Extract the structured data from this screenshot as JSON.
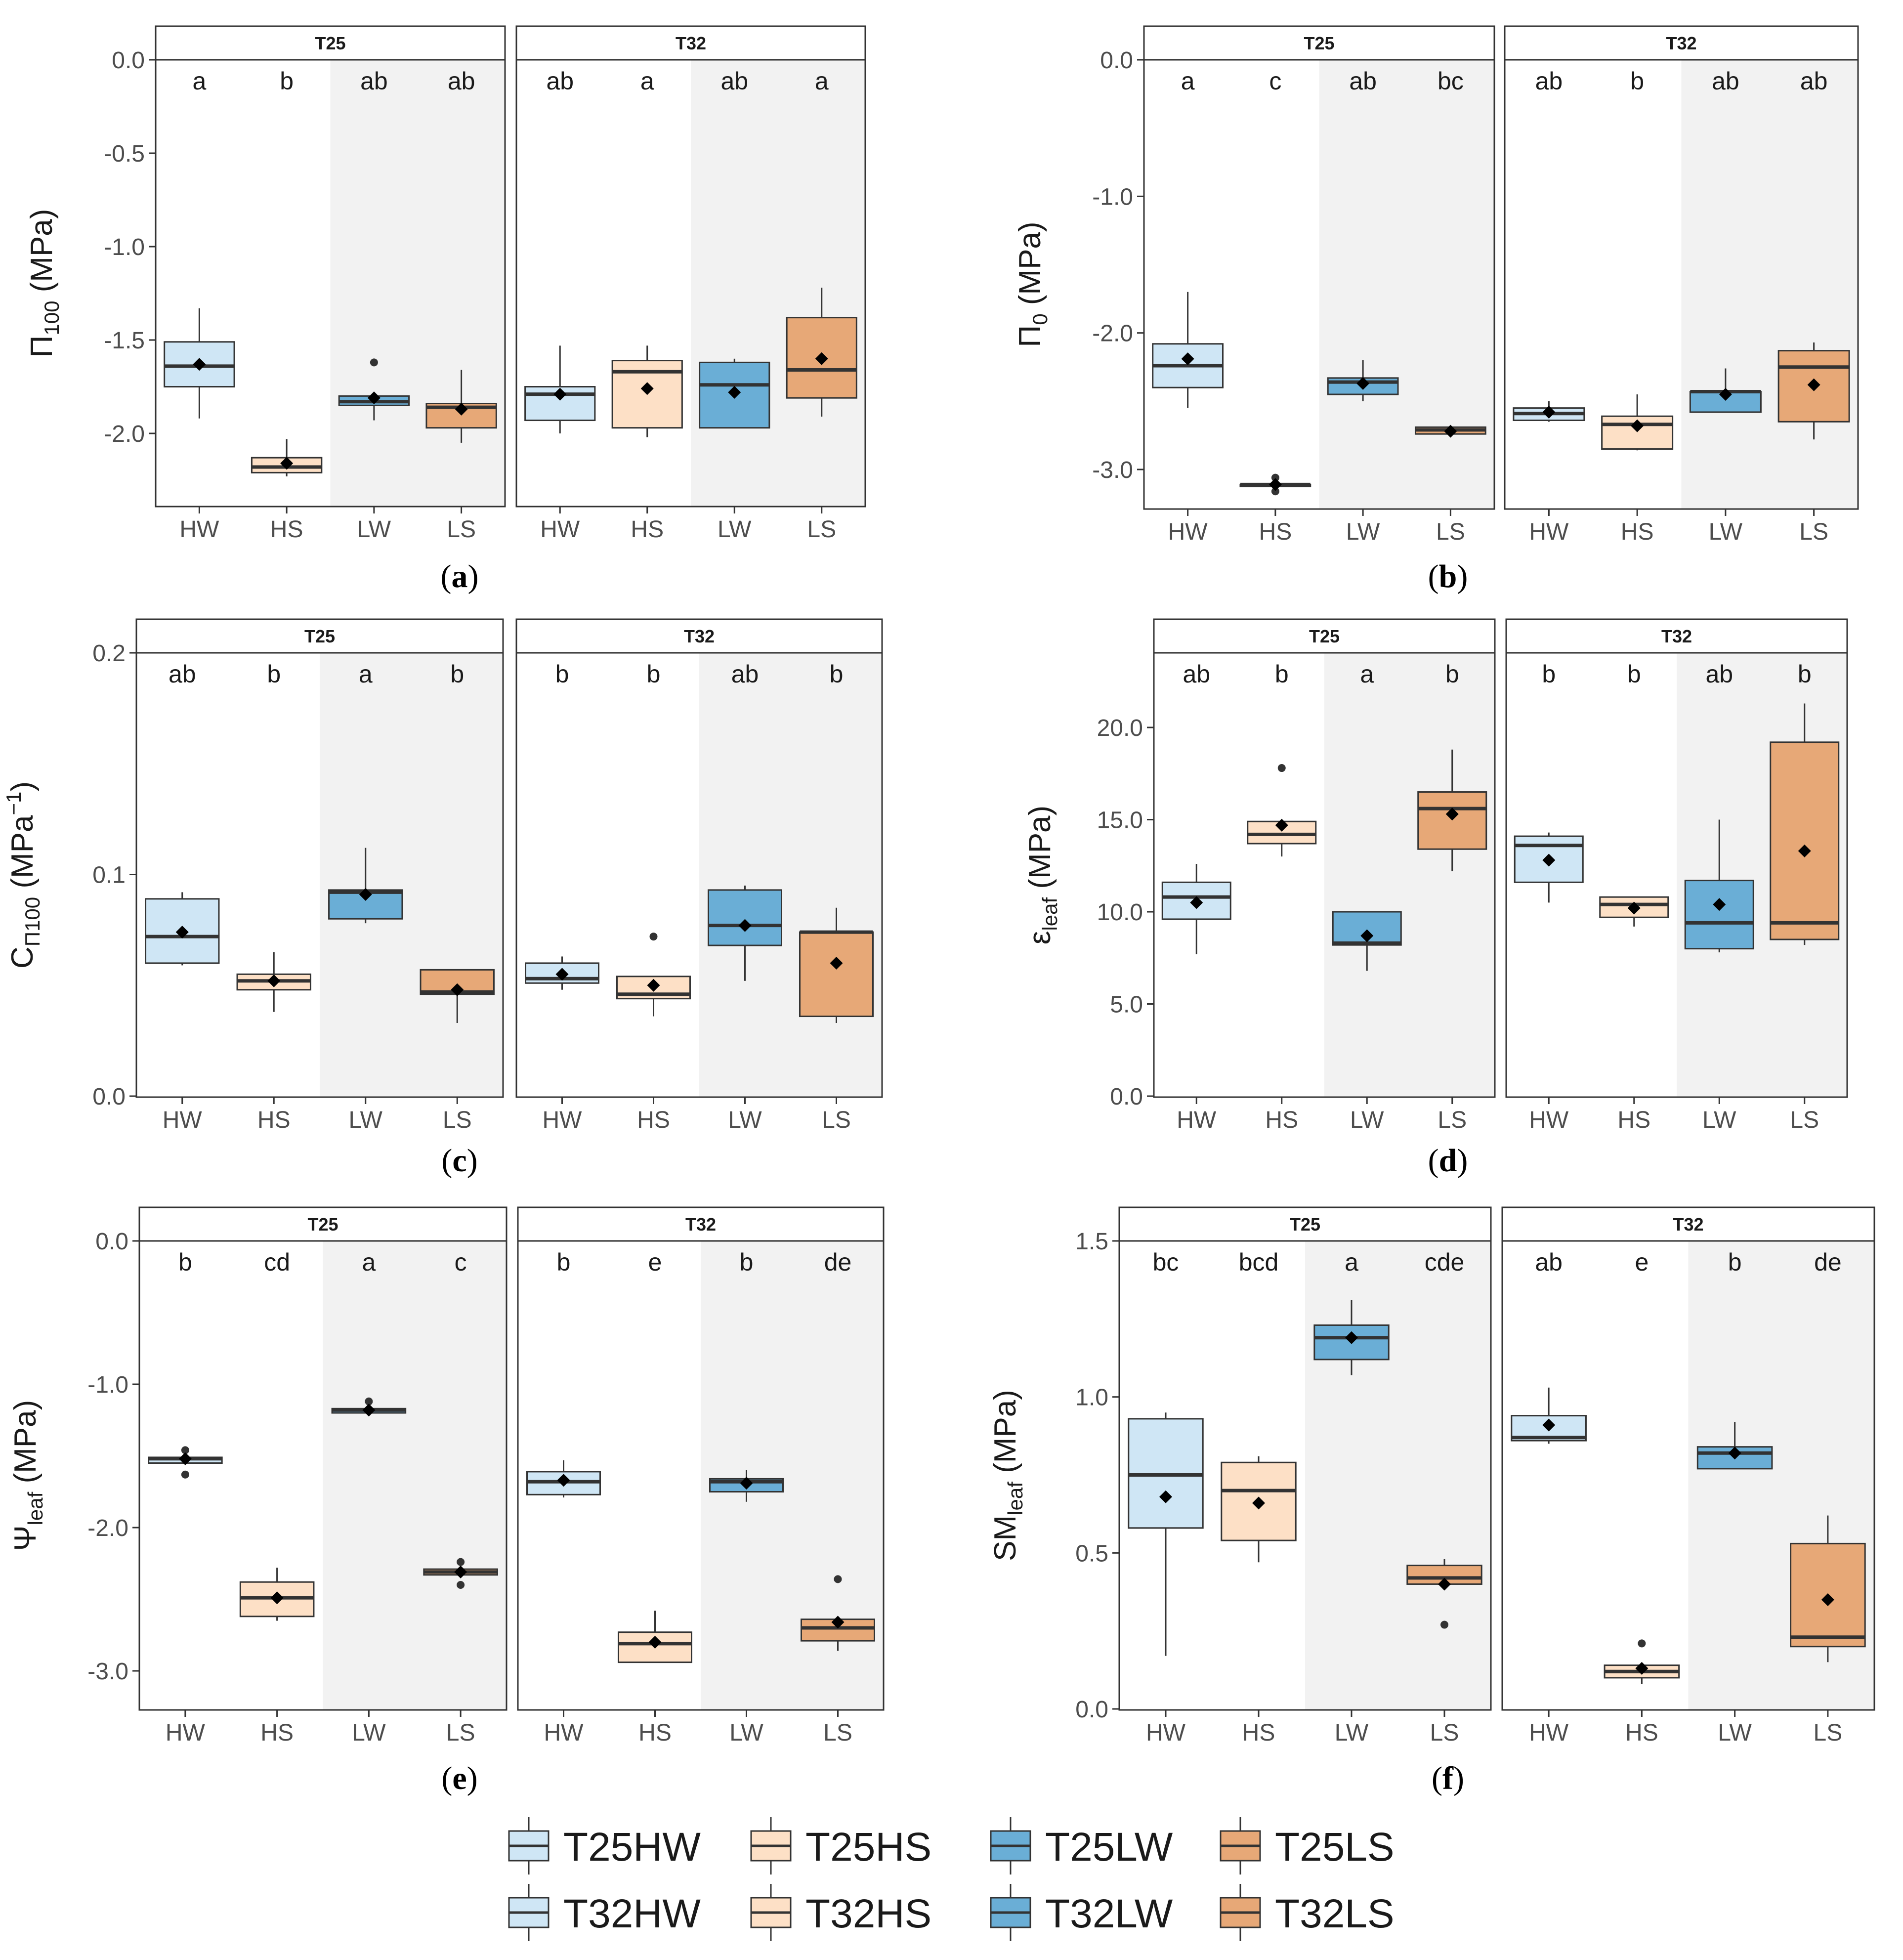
{
  "colors": {
    "HW": "#cfe6f5",
    "HS": "#fde0c6",
    "LW": "#6aaed6",
    "LS": "#e7a877",
    "shade": "#f2f2f2",
    "box_line": "#333333",
    "whisker": "#333333",
    "frame": "#333333"
  },
  "chart_data": [
    {
      "type": "box",
      "panel": "a",
      "caption": "(a)",
      "ylabel": {
        "main": "Π",
        "sub": "100",
        "tail": " (MPa)"
      },
      "ylim": [
        -2.4,
        0.0
      ],
      "yticks": [
        0.0,
        -0.5,
        -1.0,
        -1.5,
        -2.0
      ],
      "yticklabels": [
        "0.0",
        "-0.5",
        "-1.0",
        "-1.5",
        "-2.0"
      ],
      "facets": [
        {
          "strip": "T25",
          "categories": [
            "HW",
            "HS",
            "LW",
            "LS"
          ],
          "letters": [
            "a",
            "b",
            "ab",
            "ab"
          ],
          "boxes": [
            {
              "cat": "HW",
              "q1": -1.75,
              "median": -1.64,
              "q3": -1.51,
              "lo": -1.92,
              "hi": -1.33,
              "mean": -1.63,
              "outliers": []
            },
            {
              "cat": "HS",
              "q1": -2.21,
              "median": -2.18,
              "q3": -2.13,
              "lo": -2.23,
              "hi": -2.03,
              "mean": -2.16,
              "outliers": []
            },
            {
              "cat": "LW",
              "q1": -1.85,
              "median": -1.83,
              "q3": -1.8,
              "lo": -1.93,
              "hi": -1.8,
              "mean": -1.81,
              "outliers": [
                -1.62
              ]
            },
            {
              "cat": "LS",
              "q1": -1.97,
              "median": -1.86,
              "q3": -1.84,
              "lo": -2.05,
              "hi": -1.66,
              "mean": -1.87,
              "outliers": []
            }
          ]
        },
        {
          "strip": "T32",
          "categories": [
            "HW",
            "HS",
            "LW",
            "LS"
          ],
          "letters": [
            "ab",
            "a",
            "ab",
            "a"
          ],
          "boxes": [
            {
              "cat": "HW",
              "q1": -1.93,
              "median": -1.79,
              "q3": -1.75,
              "lo": -2.0,
              "hi": -1.53,
              "mean": -1.79,
              "outliers": []
            },
            {
              "cat": "HS",
              "q1": -1.97,
              "median": -1.67,
              "q3": -1.61,
              "lo": -2.02,
              "hi": -1.53,
              "mean": -1.76,
              "outliers": []
            },
            {
              "cat": "LW",
              "q1": -1.97,
              "median": -1.74,
              "q3": -1.62,
              "lo": -1.97,
              "hi": -1.6,
              "mean": -1.78,
              "outliers": []
            },
            {
              "cat": "LS",
              "q1": -1.81,
              "median": -1.66,
              "q3": -1.38,
              "lo": -1.91,
              "hi": -1.22,
              "mean": -1.6,
              "outliers": []
            }
          ]
        }
      ]
    },
    {
      "type": "box",
      "panel": "b",
      "caption": "(b)",
      "ylabel": {
        "main": "Π",
        "sub": "0",
        "tail": " (MPa)"
      },
      "ylim": [
        -3.3,
        0.0
      ],
      "yticks": [
        0.0,
        -1.0,
        -2.0,
        -3.0
      ],
      "yticklabels": [
        "0.0",
        "-1.0",
        "-2.0",
        "-3.0"
      ],
      "facets": [
        {
          "strip": "T25",
          "categories": [
            "HW",
            "HS",
            "LW",
            "LS"
          ],
          "letters": [
            "a",
            "c",
            "ab",
            "bc"
          ],
          "boxes": [
            {
              "cat": "HW",
              "q1": -2.4,
              "median": -2.24,
              "q3": -2.08,
              "lo": -2.55,
              "hi": -1.7,
              "mean": -2.19,
              "outliers": []
            },
            {
              "cat": "HS",
              "q1": -3.12,
              "median": -3.11,
              "q3": -3.11,
              "lo": -3.12,
              "hi": -3.11,
              "mean": -3.11,
              "outliers": [
                -3.06,
                -3.16
              ]
            },
            {
              "cat": "LW",
              "q1": -2.45,
              "median": -2.36,
              "q3": -2.33,
              "lo": -2.5,
              "hi": -2.2,
              "mean": -2.37,
              "outliers": []
            },
            {
              "cat": "LS",
              "q1": -2.74,
              "median": -2.71,
              "q3": -2.69,
              "lo": -2.76,
              "hi": -2.69,
              "mean": -2.72,
              "outliers": []
            }
          ]
        },
        {
          "strip": "T32",
          "categories": [
            "HW",
            "HS",
            "LW",
            "LS"
          ],
          "letters": [
            "ab",
            "b",
            "ab",
            "ab"
          ],
          "boxes": [
            {
              "cat": "HW",
              "q1": -2.64,
              "median": -2.59,
              "q3": -2.55,
              "lo": -2.65,
              "hi": -2.5,
              "mean": -2.58,
              "outliers": []
            },
            {
              "cat": "HS",
              "q1": -2.85,
              "median": -2.67,
              "q3": -2.61,
              "lo": -2.86,
              "hi": -2.45,
              "mean": -2.68,
              "outliers": []
            },
            {
              "cat": "LW",
              "q1": -2.58,
              "median": -2.43,
              "q3": -2.43,
              "lo": -2.58,
              "hi": -2.26,
              "mean": -2.45,
              "outliers": []
            },
            {
              "cat": "LS",
              "q1": -2.65,
              "median": -2.25,
              "q3": -2.13,
              "lo": -2.78,
              "hi": -2.07,
              "mean": -2.38,
              "outliers": []
            }
          ]
        }
      ]
    },
    {
      "type": "box",
      "panel": "c",
      "caption": "(c)",
      "ylabel": {
        "main": "C",
        "sub": "Π100",
        "tail": " (MPa",
        "sup": "−1",
        "tail2": ")"
      },
      "ylim": [
        0.0,
        0.2
      ],
      "yticks": [
        0.0,
        0.1,
        0.2
      ],
      "yticklabels": [
        "0.0",
        "0.1",
        "0.2"
      ],
      "facets": [
        {
          "strip": "T25",
          "categories": [
            "HW",
            "HS",
            "LW",
            "LS"
          ],
          "letters": [
            "ab",
            "b",
            "a",
            "b"
          ],
          "boxes": [
            {
              "cat": "HW",
              "q1": 0.06,
              "median": 0.072,
              "q3": 0.089,
              "lo": 0.059,
              "hi": 0.092,
              "mean": 0.074,
              "outliers": []
            },
            {
              "cat": "HS",
              "q1": 0.048,
              "median": 0.052,
              "q3": 0.055,
              "lo": 0.038,
              "hi": 0.065,
              "mean": 0.052,
              "outliers": []
            },
            {
              "cat": "LW",
              "q1": 0.08,
              "median": 0.092,
              "q3": 0.093,
              "lo": 0.078,
              "hi": 0.112,
              "mean": 0.091,
              "outliers": []
            },
            {
              "cat": "LS",
              "q1": 0.046,
              "median": 0.047,
              "q3": 0.057,
              "lo": 0.033,
              "hi": 0.057,
              "mean": 0.048,
              "outliers": []
            }
          ]
        },
        {
          "strip": "T32",
          "categories": [
            "HW",
            "HS",
            "LW",
            "LS"
          ],
          "letters": [
            "b",
            "b",
            "ab",
            "b"
          ],
          "boxes": [
            {
              "cat": "HW",
              "q1": 0.051,
              "median": 0.053,
              "q3": 0.06,
              "lo": 0.048,
              "hi": 0.063,
              "mean": 0.055,
              "outliers": []
            },
            {
              "cat": "HS",
              "q1": 0.044,
              "median": 0.046,
              "q3": 0.054,
              "lo": 0.036,
              "hi": 0.054,
              "mean": 0.05,
              "outliers": [
                0.072
              ]
            },
            {
              "cat": "LW",
              "q1": 0.068,
              "median": 0.077,
              "q3": 0.093,
              "lo": 0.052,
              "hi": 0.095,
              "mean": 0.077,
              "outliers": []
            },
            {
              "cat": "LS",
              "q1": 0.036,
              "median": 0.074,
              "q3": 0.074,
              "lo": 0.033,
              "hi": 0.085,
              "mean": 0.06,
              "outliers": []
            }
          ]
        }
      ]
    },
    {
      "type": "box",
      "panel": "d",
      "caption": "(d)",
      "ylabel": {
        "main": "ε",
        "sub": "leaf",
        "tail": " (MPa)"
      },
      "ylim": [
        0.0,
        24.0
      ],
      "yticks": [
        0.0,
        5.0,
        10.0,
        15.0,
        20.0
      ],
      "yticklabels": [
        "0.0",
        "5.0",
        "10.0",
        "15.0",
        "20.0"
      ],
      "facets": [
        {
          "strip": "T25",
          "categories": [
            "HW",
            "HS",
            "LW",
            "LS"
          ],
          "letters": [
            "ab",
            "b",
            "a",
            "b"
          ],
          "boxes": [
            {
              "cat": "HW",
              "q1": 9.6,
              "median": 10.8,
              "q3": 11.6,
              "lo": 7.7,
              "hi": 12.6,
              "mean": 10.5,
              "outliers": []
            },
            {
              "cat": "HS",
              "q1": 13.7,
              "median": 14.2,
              "q3": 14.9,
              "lo": 13.0,
              "hi": 14.9,
              "mean": 14.7,
              "outliers": [
                17.8
              ]
            },
            {
              "cat": "LW",
              "q1": 8.2,
              "median": 8.3,
              "q3": 10.0,
              "lo": 6.8,
              "hi": 10.0,
              "mean": 8.7,
              "outliers": []
            },
            {
              "cat": "LS",
              "q1": 13.4,
              "median": 15.6,
              "q3": 16.5,
              "lo": 12.2,
              "hi": 18.8,
              "mean": 15.3,
              "outliers": []
            }
          ]
        },
        {
          "strip": "T32",
          "categories": [
            "HW",
            "HS",
            "LW",
            "LS"
          ],
          "letters": [
            "b",
            "b",
            "ab",
            "b"
          ],
          "boxes": [
            {
              "cat": "HW",
              "q1": 11.6,
              "median": 13.6,
              "q3": 14.1,
              "lo": 10.5,
              "hi": 14.3,
              "mean": 12.8,
              "outliers": []
            },
            {
              "cat": "HS",
              "q1": 9.7,
              "median": 10.4,
              "q3": 10.8,
              "lo": 9.2,
              "hi": 10.8,
              "mean": 10.2,
              "outliers": []
            },
            {
              "cat": "LW",
              "q1": 8.0,
              "median": 9.4,
              "q3": 11.7,
              "lo": 7.8,
              "hi": 15.0,
              "mean": 10.4,
              "outliers": []
            },
            {
              "cat": "LS",
              "q1": 8.5,
              "median": 9.4,
              "q3": 19.2,
              "lo": 8.2,
              "hi": 21.3,
              "mean": 13.3,
              "outliers": []
            }
          ]
        }
      ]
    },
    {
      "type": "box",
      "panel": "e",
      "caption": "(e)",
      "ylabel": {
        "main": "Ψ",
        "sub": "leaf",
        "tail": " (MPa)"
      },
      "ylim": [
        -3.3,
        0.0
      ],
      "yticks": [
        0.0,
        -1.0,
        -2.0,
        -3.0
      ],
      "yticklabels": [
        "0.0",
        "-1.0",
        "-2.0",
        "-3.0"
      ],
      "facets": [
        {
          "strip": "T25",
          "categories": [
            "HW",
            "HS",
            "LW",
            "LS"
          ],
          "letters": [
            "b",
            "cd",
            "a",
            "c"
          ],
          "boxes": [
            {
              "cat": "HW",
              "q1": -1.55,
              "median": -1.52,
              "q3": -1.51,
              "lo": -1.55,
              "hi": -1.51,
              "mean": -1.52,
              "outliers": [
                -1.46,
                -1.63
              ]
            },
            {
              "cat": "HS",
              "q1": -2.62,
              "median": -2.49,
              "q3": -2.38,
              "lo": -2.65,
              "hi": -2.28,
              "mean": -2.49,
              "outliers": []
            },
            {
              "cat": "LW",
              "q1": -1.2,
              "median": -1.18,
              "q3": -1.17,
              "lo": -1.2,
              "hi": -1.17,
              "mean": -1.18,
              "outliers": [
                -1.12
              ]
            },
            {
              "cat": "LS",
              "q1": -2.33,
              "median": -2.31,
              "q3": -2.29,
              "lo": -2.33,
              "hi": -2.29,
              "mean": -2.31,
              "outliers": [
                -2.24,
                -2.4
              ]
            }
          ]
        },
        {
          "strip": "T32",
          "categories": [
            "HW",
            "HS",
            "LW",
            "LS"
          ],
          "letters": [
            "b",
            "e",
            "b",
            "de"
          ],
          "boxes": [
            {
              "cat": "HW",
              "q1": -1.77,
              "median": -1.68,
              "q3": -1.61,
              "lo": -1.79,
              "hi": -1.53,
              "mean": -1.67,
              "outliers": []
            },
            {
              "cat": "HS",
              "q1": -2.94,
              "median": -2.81,
              "q3": -2.73,
              "lo": -2.94,
              "hi": -2.58,
              "mean": -2.8,
              "outliers": []
            },
            {
              "cat": "LW",
              "q1": -1.75,
              "median": -1.68,
              "q3": -1.66,
              "lo": -1.82,
              "hi": -1.6,
              "mean": -1.69,
              "outliers": []
            },
            {
              "cat": "LS",
              "q1": -2.79,
              "median": -2.7,
              "q3": -2.64,
              "lo": -2.86,
              "hi": -2.64,
              "mean": -2.66,
              "outliers": [
                -2.36
              ]
            }
          ]
        }
      ]
    },
    {
      "type": "box",
      "panel": "f",
      "caption": "(f)",
      "ylabel": {
        "main": "SM",
        "sub": "leaf",
        "tail": " (MPa)"
      },
      "ylim": [
        0.0,
        1.5
      ],
      "yticks": [
        0.0,
        0.5,
        1.0,
        1.5
      ],
      "yticklabels": [
        "0.0",
        "0.5",
        "1.0",
        "1.5"
      ],
      "facets": [
        {
          "strip": "T25",
          "categories": [
            "HW",
            "HS",
            "LW",
            "LS"
          ],
          "letters": [
            "bc",
            "bcd",
            "a",
            "cde"
          ],
          "boxes": [
            {
              "cat": "HW",
              "q1": 0.58,
              "median": 0.75,
              "q3": 0.93,
              "lo": 0.17,
              "hi": 0.95,
              "mean": 0.68,
              "outliers": []
            },
            {
              "cat": "HS",
              "q1": 0.54,
              "median": 0.7,
              "q3": 0.79,
              "lo": 0.47,
              "hi": 0.81,
              "mean": 0.66,
              "outliers": []
            },
            {
              "cat": "LW",
              "q1": 1.12,
              "median": 1.19,
              "q3": 1.23,
              "lo": 1.07,
              "hi": 1.31,
              "mean": 1.19,
              "outliers": []
            },
            {
              "cat": "LS",
              "q1": 0.4,
              "median": 0.42,
              "q3": 0.46,
              "lo": 0.4,
              "hi": 0.48,
              "mean": 0.4,
              "outliers": [
                0.27
              ]
            }
          ]
        },
        {
          "strip": "T32",
          "categories": [
            "HW",
            "HS",
            "LW",
            "LS"
          ],
          "letters": [
            "ab",
            "e",
            "b",
            "de"
          ],
          "boxes": [
            {
              "cat": "HW",
              "q1": 0.86,
              "median": 0.87,
              "q3": 0.94,
              "lo": 0.85,
              "hi": 1.03,
              "mean": 0.91,
              "outliers": []
            },
            {
              "cat": "HS",
              "q1": 0.1,
              "median": 0.12,
              "q3": 0.14,
              "lo": 0.08,
              "hi": 0.14,
              "mean": 0.13,
              "outliers": [
                0.21
              ]
            },
            {
              "cat": "LW",
              "q1": 0.77,
              "median": 0.82,
              "q3": 0.84,
              "lo": 0.77,
              "hi": 0.92,
              "mean": 0.82,
              "outliers": []
            },
            {
              "cat": "LS",
              "q1": 0.2,
              "median": 0.23,
              "q3": 0.53,
              "lo": 0.15,
              "hi": 0.62,
              "mean": 0.35,
              "outliers": []
            }
          ]
        }
      ]
    }
  ],
  "legend": {
    "rows": [
      [
        {
          "label": "T25HW",
          "color": "HW"
        },
        {
          "label": "T25HS",
          "color": "HS"
        },
        {
          "label": "T25LW",
          "color": "LW"
        },
        {
          "label": "T25LS",
          "color": "LS"
        }
      ],
      [
        {
          "label": "T32HW",
          "color": "HW"
        },
        {
          "label": "T32HS",
          "color": "HS"
        },
        {
          "label": "T32LW",
          "color": "LW"
        },
        {
          "label": "T32LS",
          "color": "LS"
        }
      ]
    ]
  }
}
